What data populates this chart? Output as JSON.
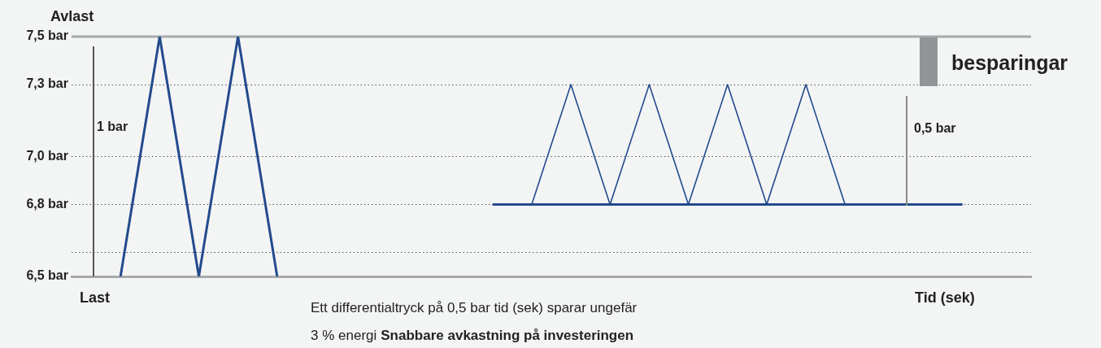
{
  "chart_data": {
    "type": "line",
    "xlabel": "Tid (sek)",
    "categories": [
      null,
      null,
      null,
      null,
      null,
      null,
      null,
      null,
      null,
      null,
      null,
      null,
      null,
      null,
      null,
      null,
      null,
      null,
      null,
      null,
      null,
      null,
      null,
      null,
      null,
      null,
      null,
      null,
      null,
      null,
      null,
      null,
      null,
      null,
      null,
      null,
      null,
      null,
      null,
      null,
      null,
      null,
      null,
      null,
      null,
      null,
      null,
      null,
      null
    ],
    "series": [
      {
        "color": "#234a8c",
        "values": [
          null,
          null,
          6.5,
          null,
          7.5,
          null,
          6.5,
          null,
          7.5,
          null,
          6.5,
          null,
          null,
          null,
          null,
          null,
          null,
          null,
          null,
          null,
          null,
          null,
          null,
          null,
          null,
          null,
          null,
          null,
          null,
          null,
          null,
          null,
          null,
          null,
          null,
          null,
          null,
          null,
          null,
          null,
          null,
          null,
          null,
          null,
          null,
          null,
          null,
          null,
          null
        ]
      },
      {
        "color": "#234a8c",
        "values": [
          null,
          null,
          null,
          null,
          null,
          null,
          null,
          null,
          null,
          null,
          null,
          null,
          null,
          null,
          null,
          null,
          null,
          null,
          null,
          null,
          null,
          6.8,
          null,
          null,
          null,
          null,
          null,
          null,
          null,
          null,
          null,
          null,
          null,
          null,
          null,
          null,
          null,
          null,
          null,
          null,
          null,
          null,
          null,
          null,
          null,
          6.8,
          null,
          null,
          null
        ]
      },
      {
        "color": "#234a8c",
        "values": [
          null,
          null,
          null,
          null,
          null,
          null,
          null,
          null,
          null,
          null,
          null,
          null,
          null,
          null,
          null,
          null,
          null,
          null,
          null,
          null,
          null,
          null,
          null,
          6.8,
          null,
          7.3,
          null,
          6.8,
          null,
          7.3,
          null,
          6.8,
          null,
          7.3,
          null,
          6.8,
          null,
          7.3,
          null,
          6.8,
          null,
          null,
          null,
          null,
          null,
          null,
          null,
          null,
          null
        ]
      }
    ],
    "ylim": [
      6.5,
      7.5
    ],
    "yticks": [
      {
        "value": 6.5,
        "label": "6,5 bar"
      },
      {
        "value": 6.8,
        "label": "6,8 bar"
      },
      {
        "value": 7.0,
        "label": "7,0 bar"
      },
      {
        "value": 7.3,
        "label": "7,3 bar"
      },
      {
        "value": 7.5,
        "label": "7,5 bar"
      }
    ],
    "tick_labels": "y",
    "grid": "y",
    "legend": false,
    "marker": "none",
    "ref_lines": [
      {
        "axis": "y",
        "value": 7.5,
        "color": "#a7a9ac",
        "line_style": "solid"
      },
      {
        "axis": "y",
        "value": 6.6,
        "color": "#555555",
        "line_style": "dotted"
      }
    ],
    "annotations": [
      "Avlast",
      "Last",
      "Ett differentialtryck på 0,5 bar tid (sek) sparar ungefär",
      "3 % energi",
      "Snabbare avkastning på investeringen",
      "1 bar",
      "0,5 bar",
      "besparingar"
    ]
  }
}
